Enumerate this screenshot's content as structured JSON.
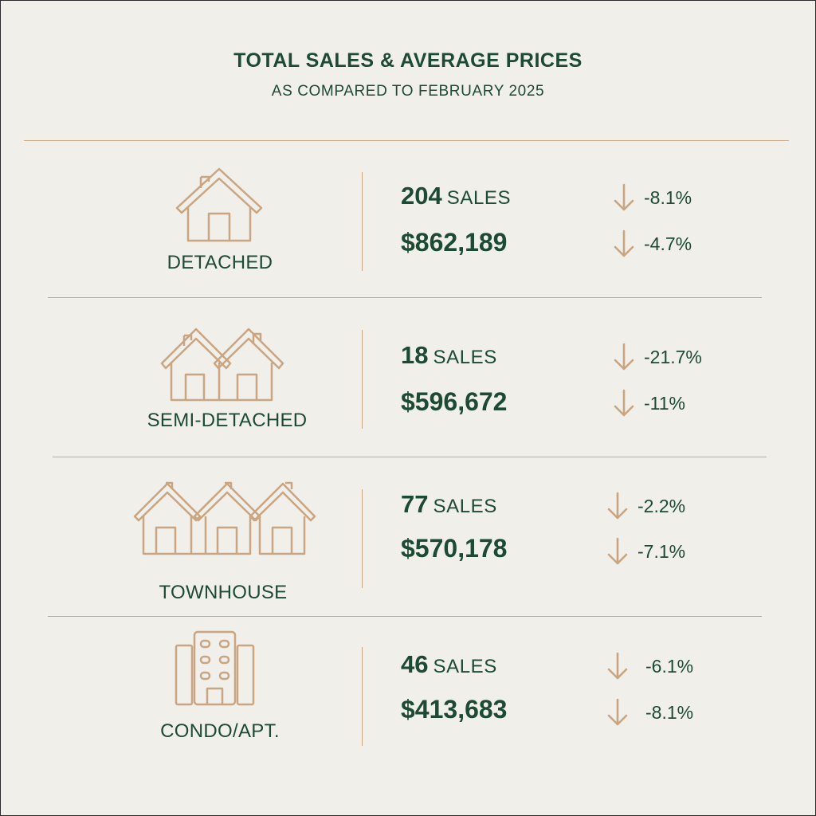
{
  "header": {
    "title": "TOTAL SALES & AVERAGE PRICES",
    "subtitle": "AS COMPARED TO FEBRUARY 2025"
  },
  "colors": {
    "background": "#f1efea",
    "text": "#1c4a33",
    "accent": "#c9a581"
  },
  "sections": [
    {
      "type": "DETACHED",
      "icon": "house-icon",
      "sales": "204",
      "sales_label": "SALES",
      "sales_change": "-8.1%",
      "price": "$862,189",
      "price_change": "-4.7%"
    },
    {
      "type": "SEMI-DETACHED",
      "icon": "semi-detached-icon",
      "sales": "18",
      "sales_label": "SALES",
      "sales_change": "-21.7%",
      "price": "$596,672",
      "price_change": "-11%"
    },
    {
      "type": "TOWNHOUSE",
      "icon": "townhouse-icon",
      "sales": "77",
      "sales_label": "SALES",
      "sales_change": "-2.2%",
      "price": "$570,178",
      "price_change": "-7.1%"
    },
    {
      "type": "CONDO/APT.",
      "icon": "condo-building-icon",
      "sales": "46",
      "sales_label": "SALES",
      "sales_change": "-6.1%",
      "price": "$413,683",
      "price_change": "-8.1%"
    }
  ]
}
